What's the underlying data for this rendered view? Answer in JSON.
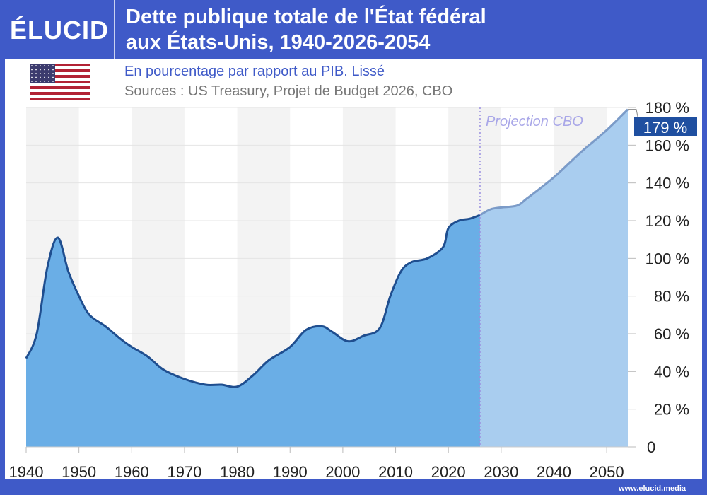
{
  "header": {
    "logo": "ÉLUCID",
    "title_line1": "Dette publique totale de l'État fédéral",
    "title_line2": "aux États-Unis, 1940-2026-2054",
    "subtitle": "En pourcentage par rapport au PIB. Lissé",
    "sources": "Sources : US Treasury, Projet de Budget 2026, CBO",
    "flag": "usa-flag"
  },
  "footer": {
    "url": "www.elucid.media"
  },
  "colors": {
    "brand": "#3f5ac8",
    "historical_fill": "#6aaee6",
    "historical_line": "#1f4e8f",
    "projection_fill": "#a9cdef",
    "projection_line": "#7b9bc8",
    "label_box": "#1f4fa0"
  },
  "chart_data": {
    "type": "area",
    "xlim": [
      1940,
      2054
    ],
    "ylim": [
      0,
      180
    ],
    "x_ticks": [
      "1940",
      "1950",
      "1960",
      "1970",
      "1980",
      "1990",
      "2000",
      "2010",
      "2020",
      "2030",
      "2040",
      "2050"
    ],
    "y_ticks": [
      "0",
      "20 %",
      "40 %",
      "60 %",
      "80 %",
      "100 %",
      "120 %",
      "140 %",
      "160 %",
      "180 %"
    ],
    "annotation": "Projection CBO",
    "projection_start": 2026,
    "end_label": "179 %",
    "series": [
      {
        "values": [
          [
            1940,
            47
          ],
          [
            1942,
            60
          ],
          [
            1944,
            95
          ],
          [
            1946,
            111
          ],
          [
            1948,
            93
          ],
          [
            1950,
            80
          ],
          [
            1952,
            70
          ],
          [
            1955,
            64
          ],
          [
            1958,
            57
          ],
          [
            1960,
            53
          ],
          [
            1963,
            48
          ],
          [
            1966,
            41
          ],
          [
            1970,
            36
          ],
          [
            1974,
            33
          ],
          [
            1977,
            33
          ],
          [
            1980,
            32
          ],
          [
            1983,
            38
          ],
          [
            1986,
            46
          ],
          [
            1990,
            53
          ],
          [
            1993,
            62
          ],
          [
            1996,
            64
          ],
          [
            1998,
            61
          ],
          [
            2001,
            56
          ],
          [
            2004,
            59
          ],
          [
            2007,
            63
          ],
          [
            2009,
            80
          ],
          [
            2011,
            93
          ],
          [
            2013,
            98
          ],
          [
            2016,
            100
          ],
          [
            2019,
            106
          ],
          [
            2020,
            116
          ],
          [
            2022,
            120
          ],
          [
            2024,
            121
          ],
          [
            2026,
            123
          ]
        ]
      },
      {
        "values": [
          [
            2026,
            123
          ],
          [
            2028,
            126
          ],
          [
            2030,
            127
          ],
          [
            2033,
            128
          ],
          [
            2035,
            132
          ],
          [
            2040,
            143
          ],
          [
            2045,
            156
          ],
          [
            2050,
            168
          ],
          [
            2054,
            179
          ]
        ]
      }
    ]
  }
}
